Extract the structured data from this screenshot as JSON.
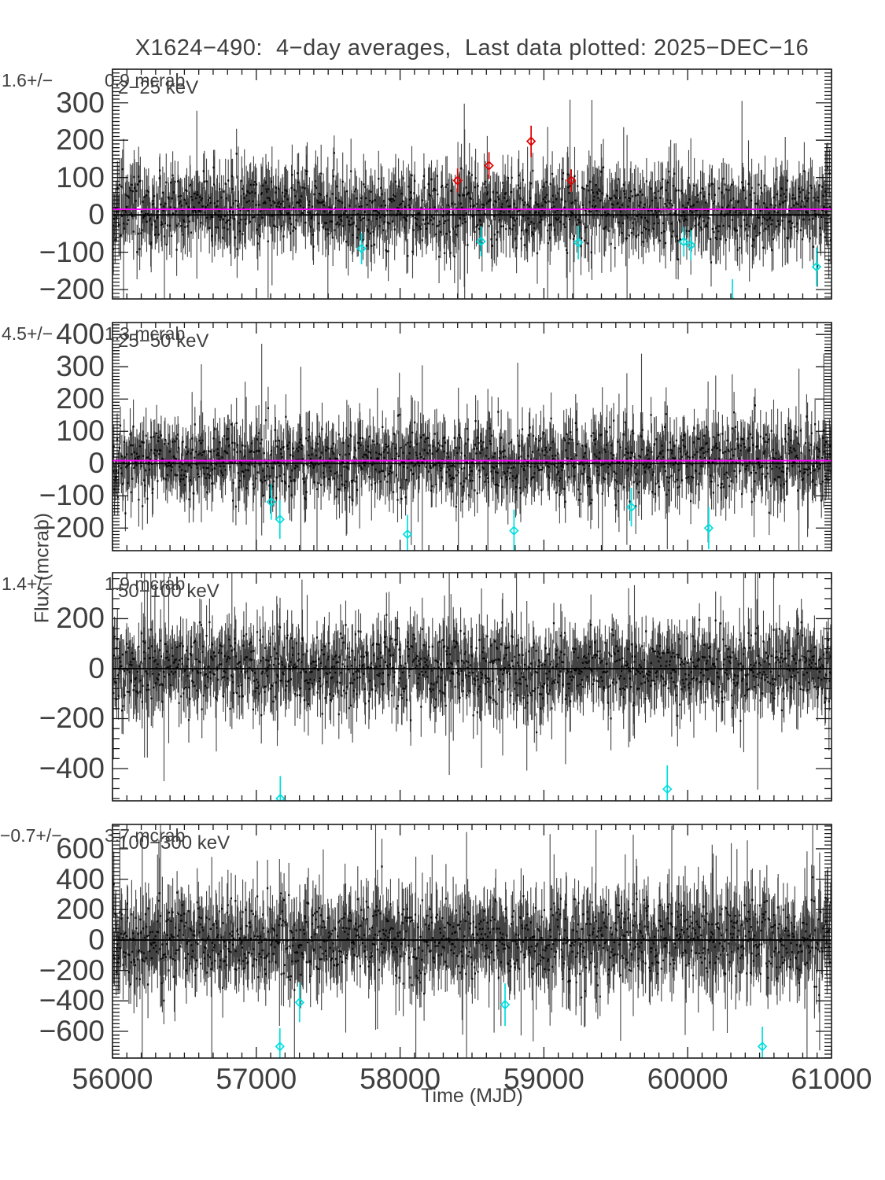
{
  "title": "X1624−490:  4−day averages,  Last data plotted: 2025−DEC−16",
  "xlabel": "Time (MJD)",
  "ylabel": "Flux (mcrab)",
  "colors": {
    "background": "#ffffff",
    "frame": "#1a1a1a",
    "data": "#141414",
    "average_line": "#ff00ff",
    "zero_line": "#000000",
    "high_outlier": "#e00000",
    "low_outlier": "#00dede",
    "text": "#3f3f3f"
  },
  "chart_data": [
    {
      "type": "scatter",
      "band_label": "2−25 keV",
      "annotation_left": "1.6+/−",
      "annotation_right": "0.9 mcrab",
      "xlim": [
        56000,
        61000
      ],
      "ylim": [
        -225,
        390
      ],
      "xticks": [
        56000,
        57000,
        58000,
        59000,
        60000,
        61000
      ],
      "x_minor_step": 100,
      "yticks": [
        300,
        200,
        100,
        0,
        -100,
        -200
      ],
      "y_minor_step": 10,
      "zero_line_y": 0,
      "avg_line_y": 15,
      "noise": {
        "seed": 11,
        "n": 1250,
        "mean": 14,
        "sigma": 48,
        "err_base": 72
      },
      "red_points": [
        {
          "x": 58400,
          "y": 92,
          "err": 32
        },
        {
          "x": 58618,
          "y": 132,
          "err": 36
        },
        {
          "x": 58911,
          "y": 197,
          "err": 42
        },
        {
          "x": 59190,
          "y": 92,
          "err": 30
        }
      ],
      "cyan_points": [
        {
          "x": 57732,
          "y": -90,
          "err": 42
        },
        {
          "x": 58563,
          "y": -71,
          "err": 40
        },
        {
          "x": 59239,
          "y": -74,
          "err": 45
        },
        {
          "x": 59973,
          "y": -72,
          "err": 40
        },
        {
          "x": 60022,
          "y": -81,
          "err": 40
        },
        {
          "x": 60311,
          "y": -232,
          "err": 60
        },
        {
          "x": 60896,
          "y": -139,
          "err": 52
        }
      ]
    },
    {
      "type": "scatter",
      "band_label": "25−50 keV",
      "annotation_left": "4.5+/−",
      "annotation_right": "1.3 mcrab",
      "xlim": [
        56000,
        61000
      ],
      "ylim": [
        -270,
        437
      ],
      "xticks": [
        56000,
        57000,
        58000,
        59000,
        60000,
        61000
      ],
      "x_minor_step": 100,
      "yticks": [
        400,
        300,
        200,
        100,
        0,
        -100,
        -200
      ],
      "y_minor_step": 10,
      "zero_line_y": 0,
      "avg_line_y": 9,
      "noise": {
        "seed": 22,
        "n": 1250,
        "mean": 8,
        "sigma": 55,
        "err_base": 78
      },
      "red_points": [],
      "cyan_points": [
        {
          "x": 57104,
          "y": -119,
          "err": 55
        },
        {
          "x": 57164,
          "y": -173,
          "err": 60
        },
        {
          "x": 58051,
          "y": -219,
          "err": 60
        },
        {
          "x": 58792,
          "y": -208,
          "err": 65
        },
        {
          "x": 59608,
          "y": -135,
          "err": 60
        },
        {
          "x": 60146,
          "y": -200,
          "err": 65
        }
      ]
    },
    {
      "type": "scatter",
      "band_label": "50−100 keV",
      "annotation_left": "1.4+/−",
      "annotation_right": "1.9 mcrab",
      "xlim": [
        56000,
        61000
      ],
      "ylim": [
        -529,
        384
      ],
      "xticks": [
        56000,
        57000,
        58000,
        59000,
        60000,
        61000
      ],
      "x_minor_step": 100,
      "yticks": [
        200,
        0,
        -200,
        -400
      ],
      "y_minor_step": 40,
      "zero_line_y": 0,
      "avg_line_y": null,
      "noise": {
        "seed": 33,
        "n": 1250,
        "mean": 0,
        "sigma": 72,
        "err_base": 112
      },
      "red_points": [],
      "cyan_points": [
        {
          "x": 57167,
          "y": -520,
          "err": 90
        },
        {
          "x": 59858,
          "y": -482,
          "err": 95
        }
      ]
    },
    {
      "type": "scatter",
      "band_label": "100−300 keV",
      "annotation_left": "−0.7+/−",
      "annotation_right": "3.7 mcrab",
      "xlim": [
        56000,
        61000
      ],
      "ylim": [
        -776,
        760
      ],
      "xticks": [
        56000,
        57000,
        58000,
        59000,
        60000,
        61000
      ],
      "x_minor_step": 100,
      "yticks": [
        600,
        400,
        200,
        0,
        -200,
        -400,
        -600
      ],
      "y_minor_step": 25,
      "zero_line_y": 0,
      "avg_line_y": null,
      "noise": {
        "seed": 44,
        "n": 1250,
        "mean": 0,
        "sigma": 125,
        "err_base": 205
      },
      "red_points": [],
      "cyan_points": [
        {
          "x": 57164,
          "y": -700,
          "err": 120
        },
        {
          "x": 57301,
          "y": -410,
          "err": 130
        },
        {
          "x": 58730,
          "y": -425,
          "err": 140
        },
        {
          "x": 60519,
          "y": -700,
          "err": 130
        }
      ]
    }
  ]
}
